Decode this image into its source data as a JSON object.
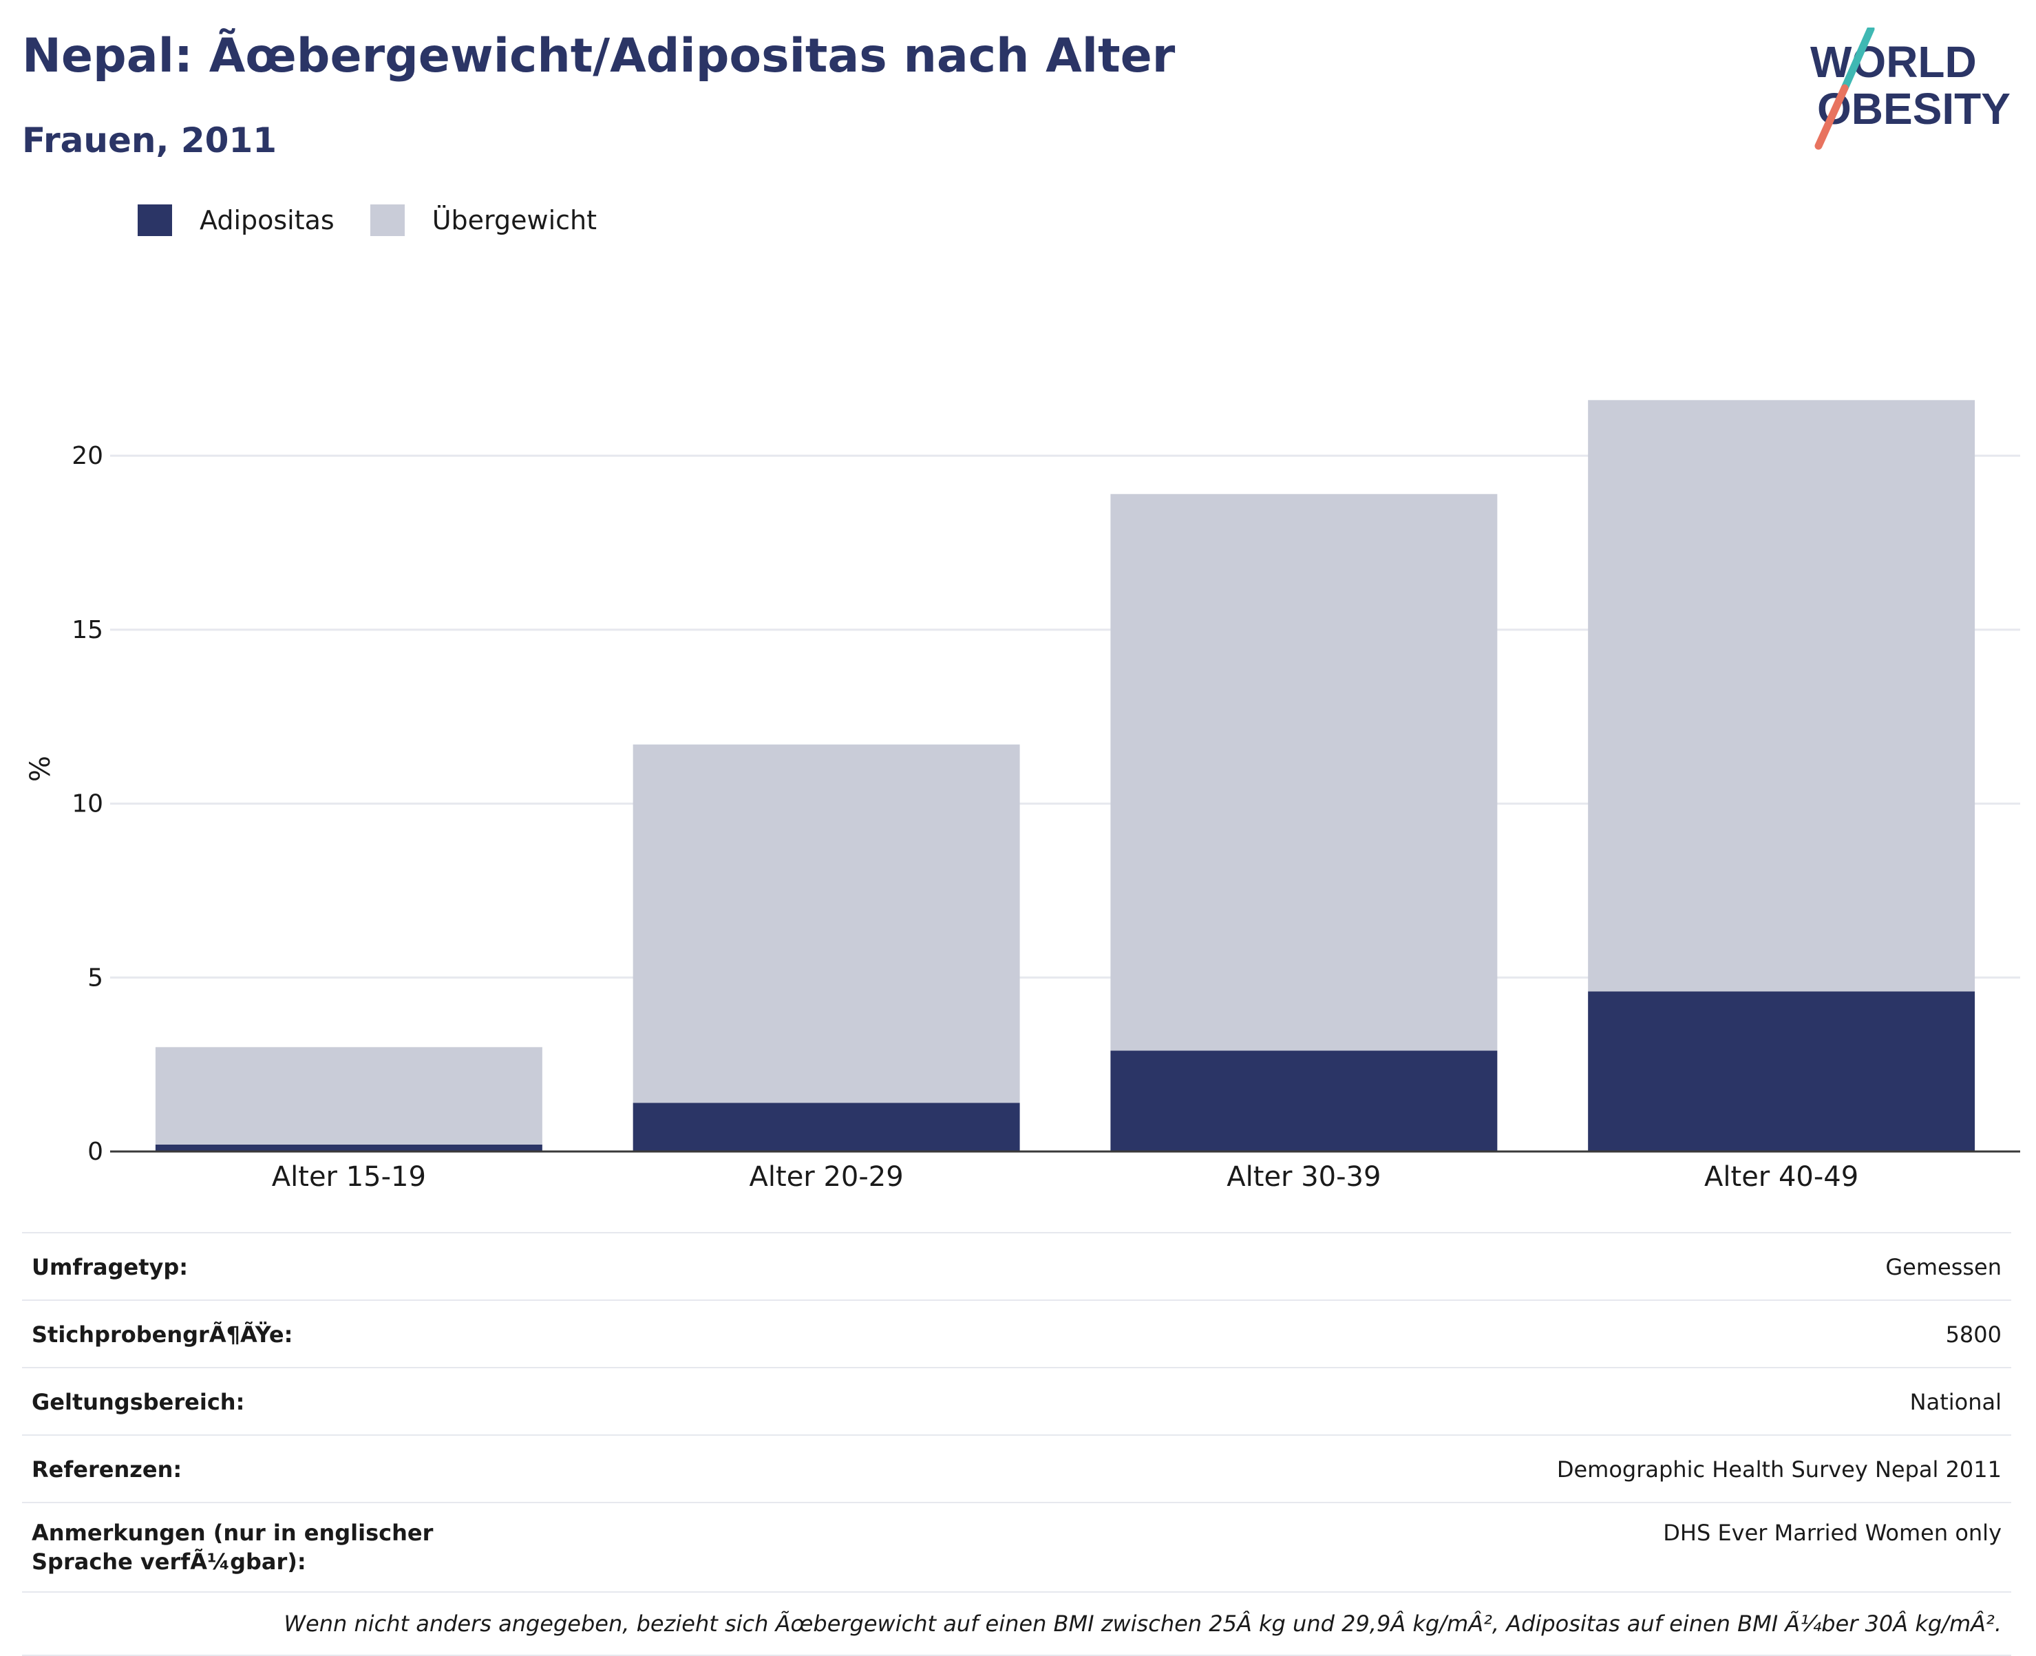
{
  "title": "Nepal: Ãœbergewicht/Adipositas nach Alter",
  "subtitle": "Frauen, 2011",
  "logo": {
    "line1": "WORLD",
    "line2": "OBESITY"
  },
  "colors": {
    "adipositas": "#2b3566",
    "uebergewicht": "#c9ccd8",
    "accent_teal": "#3fb8b3",
    "accent_coral": "#e8735f"
  },
  "chart_data": {
    "type": "bar",
    "stacked": true,
    "categories": [
      "Alter 15-19",
      "Alter 20-29",
      "Alter 30-39",
      "Alter 40-49"
    ],
    "series": [
      {
        "name": "Adipositas",
        "values": [
          0.2,
          1.4,
          2.9,
          4.6
        ]
      },
      {
        "name": "Übergewicht",
        "values": [
          2.8,
          10.3,
          16.0,
          17.0
        ]
      }
    ],
    "ylabel": "%",
    "ylim": [
      0,
      24
    ],
    "yticks": [
      0,
      5,
      10,
      15,
      20
    ],
    "grid": true,
    "legend_position": "top-left"
  },
  "info": {
    "rows": [
      {
        "label": "Umfragetyp:",
        "value": "Gemessen"
      },
      {
        "label": "StichprobengrÃ¶ÃŸe:",
        "value": "5800"
      },
      {
        "label": "Geltungsbereich:",
        "value": "National"
      },
      {
        "label": "Referenzen:",
        "value": "Demographic Health Survey Nepal 2011"
      },
      {
        "label": "Anmerkungen (nur in englischer Sprache verfÃ¼gbar):",
        "value": "DHS Ever Married Women only"
      }
    ],
    "note": "Wenn nicht anders angegeben, bezieht sich Ãœbergewicht auf einen BMI zwischen 25Â kg und 29,9Â kg/mÂ², Adipositas auf einen BMI Ã¼ber 30Â kg/mÂ²."
  }
}
